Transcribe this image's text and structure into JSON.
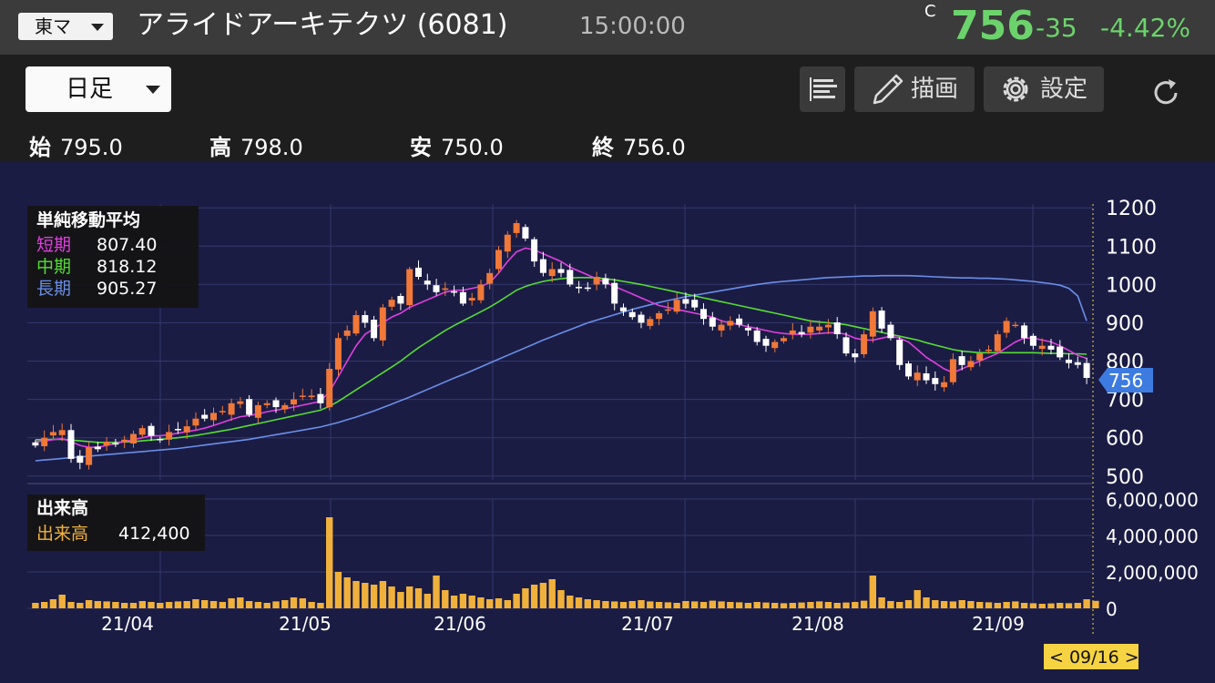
{
  "header": {
    "market": "東マ",
    "title": "アライドアーキテクツ (6081)",
    "time": "15:00:00",
    "price_flag": "C",
    "price": "756",
    "change": "-35",
    "change_pct": "-4.42%",
    "price_color": "#6cd36c"
  },
  "toolbar": {
    "period": "日足",
    "draw_label": "描画",
    "settings_label": "設定"
  },
  "ohlc": {
    "open_label": "始",
    "open": "795.0",
    "high_label": "高",
    "high": "798.0",
    "low_label": "安",
    "low": "750.0",
    "close_label": "終",
    "close": "756.0"
  },
  "sma_legend": {
    "title": "単純移動平均",
    "items": [
      {
        "label": "短期",
        "value": "807.40",
        "color": "#e040e0"
      },
      {
        "label": "中期",
        "value": "818.12",
        "color": "#55dd33"
      },
      {
        "label": "長期",
        "value": "905.27",
        "color": "#6a8fe8"
      }
    ]
  },
  "volume_legend": {
    "title": "出来高",
    "label": "出来高",
    "value": "412,400",
    "color": "#f0b13c"
  },
  "price_marker": "756",
  "date_marker": "< 09/16 >",
  "colors": {
    "up": "#f07838",
    "down": "#ffffff",
    "volume": "#f0b13c",
    "background": "#1b1c44"
  },
  "chart_data": [
    {
      "type": "candlestick",
      "title": "",
      "y_ticks": [
        500,
        600,
        700,
        800,
        900,
        1000,
        1100,
        1200
      ],
      "ylim": [
        490,
        1210
      ],
      "x_labels": [
        "21/04",
        "21/05",
        "21/06",
        "21/07",
        "21/08",
        "21/09"
      ],
      "close": [
        580,
        600,
        615,
        620,
        545,
        535,
        575,
        570,
        590,
        585,
        595,
        610,
        625,
        605,
        595,
        615,
        620,
        630,
        650,
        650,
        665,
        670,
        690,
        695,
        660,
        685,
        690,
        680,
        685,
        700,
        710,
        710,
        690,
        780,
        860,
        880,
        920,
        900,
        860,
        940,
        960,
        950,
        1040,
        1020,
        1000,
        980,
        990,
        980,
        950,
        965,
        1000,
        1030,
        1090,
        1130,
        1160,
        1120,
        1060,
        1030,
        1040,
        1030,
        1000,
        990,
        990,
        1020,
        1000,
        950,
        930,
        915,
        900,
        910,
        925,
        935,
        960,
        950,
        940,
        910,
        890,
        895,
        905,
        895,
        880,
        850,
        840,
        850,
        860,
        880,
        870,
        890,
        890,
        895,
        870,
        820,
        810,
        870,
        930,
        885,
        860,
        790,
        760,
        770,
        750,
        740,
        745,
        805,
        790,
        800,
        820,
        830,
        870,
        905,
        895,
        860,
        840,
        840,
        830,
        810,
        795,
        790,
        756
      ],
      "sma_short": [
        590,
        592,
        595,
        598,
        590,
        580,
        575,
        575,
        580,
        585,
        590,
        595,
        600,
        605,
        605,
        608,
        612,
        616,
        620,
        625,
        632,
        640,
        648,
        655,
        658,
        662,
        668,
        672,
        676,
        680,
        685,
        690,
        695,
        720,
        760,
        800,
        840,
        870,
        885,
        900,
        915,
        925,
        940,
        950,
        960,
        970,
        980,
        985,
        985,
        990,
        995,
        1005,
        1030,
        1060,
        1085,
        1095,
        1090,
        1080,
        1070,
        1060,
        1045,
        1035,
        1025,
        1015,
        1005,
        995,
        985,
        975,
        965,
        955,
        945,
        940,
        935,
        930,
        925,
        920,
        915,
        905,
        900,
        895,
        890,
        885,
        880,
        875,
        872,
        870,
        870,
        870,
        872,
        874,
        874,
        870,
        860,
        855,
        855,
        860,
        865,
        860,
        850,
        830,
        810,
        795,
        780,
        770,
        780,
        790,
        800,
        810,
        820,
        835,
        850,
        860,
        860,
        855,
        850,
        840,
        828,
        815,
        807
      ],
      "sma_mid": [
        595,
        595,
        596,
        596,
        594,
        592,
        590,
        588,
        588,
        588,
        589,
        590,
        592,
        594,
        596,
        598,
        600,
        603,
        606,
        610,
        614,
        618,
        622,
        627,
        632,
        637,
        642,
        647,
        652,
        657,
        662,
        667,
        672,
        682,
        695,
        710,
        725,
        740,
        755,
        770,
        785,
        800,
        818,
        835,
        850,
        865,
        880,
        893,
        905,
        917,
        929,
        941,
        955,
        970,
        985,
        995,
        1002,
        1008,
        1012,
        1015,
        1017,
        1018,
        1018,
        1017,
        1015,
        1012,
        1008,
        1004,
        1000,
        995,
        990,
        985,
        980,
        975,
        970,
        965,
        960,
        955,
        950,
        945,
        940,
        935,
        930,
        925,
        920,
        915,
        910,
        905,
        902,
        900,
        898,
        895,
        890,
        885,
        880,
        875,
        870,
        865,
        860,
        855,
        848,
        842,
        836,
        830,
        826,
        824,
        822,
        822,
        822,
        822,
        822,
        822,
        822,
        821,
        820,
        820,
        819,
        819,
        818
      ],
      "sma_long": [
        540,
        542,
        544,
        546,
        548,
        550,
        552,
        554,
        556,
        558,
        560,
        562,
        564,
        566,
        568,
        570,
        572,
        575,
        578,
        581,
        584,
        587,
        590,
        593,
        596,
        600,
        604,
        608,
        612,
        616,
        620,
        624,
        628,
        634,
        640,
        647,
        654,
        662,
        670,
        679,
        688,
        697,
        706,
        716,
        726,
        736,
        746,
        756,
        765,
        775,
        785,
        795,
        805,
        815,
        825,
        835,
        845,
        855,
        864,
        873,
        882,
        891,
        900,
        907,
        914,
        921,
        928,
        935,
        941,
        947,
        953,
        958,
        963,
        968,
        972,
        976,
        980,
        984,
        988,
        992,
        996,
        1000,
        1003,
        1006,
        1008,
        1010,
        1012,
        1014,
        1016,
        1018,
        1019,
        1020,
        1021,
        1022,
        1022,
        1023,
        1023,
        1023,
        1023,
        1022,
        1021,
        1020,
        1019,
        1018,
        1017,
        1017,
        1016,
        1016,
        1015,
        1014,
        1012,
        1010,
        1008,
        1005,
        1002,
        998,
        990,
        970,
        905
      ]
    },
    {
      "type": "bar",
      "title": "",
      "y_ticks": [
        0,
        2000000,
        4000000,
        6000000
      ],
      "ylim": [
        0,
        6000000
      ],
      "values": [
        300000,
        350000,
        500000,
        750000,
        350000,
        300000,
        450000,
        400000,
        380000,
        350000,
        300000,
        300000,
        400000,
        350000,
        300000,
        350000,
        380000,
        400000,
        500000,
        450000,
        400000,
        350000,
        550000,
        600000,
        400000,
        350000,
        300000,
        380000,
        450000,
        600000,
        550000,
        350000,
        300000,
        5000000,
        2000000,
        1700000,
        1500000,
        1400000,
        1300000,
        1500000,
        1200000,
        900000,
        1200000,
        1100000,
        800000,
        1800000,
        1000000,
        700000,
        800000,
        700000,
        600000,
        500000,
        550000,
        450000,
        800000,
        1100000,
        1300000,
        1400000,
        1600000,
        1000000,
        700000,
        600000,
        500000,
        450000,
        400000,
        380000,
        350000,
        400000,
        450000,
        380000,
        350000,
        330000,
        300000,
        400000,
        380000,
        350000,
        420000,
        380000,
        350000,
        330000,
        300000,
        350000,
        320000,
        300000,
        280000,
        300000,
        320000,
        350000,
        380000,
        350000,
        300000,
        320000,
        350000,
        420000,
        1800000,
        600000,
        400000,
        350000,
        450000,
        1000000,
        600000,
        450000,
        400000,
        380000,
        450000,
        400000,
        350000,
        330000,
        300000,
        350000,
        380000,
        300000,
        280000,
        250000,
        270000,
        300000,
        280000,
        300000,
        500000,
        412400
      ]
    }
  ]
}
